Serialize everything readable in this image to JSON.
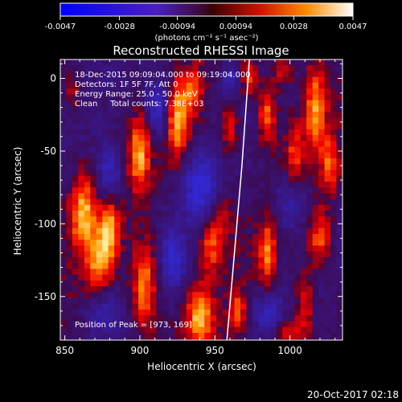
{
  "chart_data": {
    "type": "heatmap",
    "title": "Reconstructed RHESSI Image",
    "xlabel": "Heliocentric X (arcsec)",
    "ylabel": "Heliocentric Y (arcsec)",
    "xlim": [
      847,
      1035
    ],
    "ylim": [
      -180,
      13
    ],
    "xticks": [
      850,
      900,
      950,
      1000
    ],
    "yticks": [
      0,
      -50,
      -100,
      -150
    ],
    "colorbar": {
      "range": [
        -0.0047,
        0.0047
      ],
      "ticks": [
        "-0.0047",
        "-0.0028",
        "-0.00094",
        "0.00094",
        "0.0028",
        "0.0047"
      ],
      "units_label": "(photons cm⁻² s⁻¹ asec⁻²)"
    },
    "annotations": [
      "18-Dec-2015 09:09:04.000 to 09:19:04.000",
      "Detectors: 1F 5F 7F, Att 0",
      "Energy Range: 25.0 - 50.0 keV",
      "Clean     Total counts: 7.38E+03"
    ],
    "peak_label": "Position of Peak = [973, 169]",
    "footer_date": "20-Oct-2017 02:18",
    "limb_curve": [
      [
        973,
        13
      ],
      [
        968,
        -60
      ],
      [
        963,
        -120
      ],
      [
        958,
        -180
      ]
    ],
    "blobs": [
      {
        "x": 925,
        "y": -30,
        "sx": 5,
        "sy": 18,
        "a": 1.0
      },
      {
        "x": 900,
        "y": -52,
        "sx": 5,
        "sy": 18,
        "a": 0.9
      },
      {
        "x": 862,
        "y": -92,
        "sx": 6,
        "sy": 18,
        "a": 1.0
      },
      {
        "x": 880,
        "y": -105,
        "sx": 5,
        "sy": 16,
        "a": 0.9
      },
      {
        "x": 872,
        "y": -128,
        "sx": 6,
        "sy": 16,
        "a": 0.8
      },
      {
        "x": 903,
        "y": -143,
        "sx": 6,
        "sy": 22,
        "a": 0.95
      },
      {
        "x": 940,
        "y": -165,
        "sx": 6,
        "sy": 14,
        "a": 1.0
      },
      {
        "x": 947,
        "y": -115,
        "sx": 5,
        "sy": 14,
        "a": 0.7
      },
      {
        "x": 955,
        "y": -95,
        "sx": 5,
        "sy": 12,
        "a": 0.5
      },
      {
        "x": 935,
        "y": -10,
        "sx": 5,
        "sy": 12,
        "a": 0.6
      },
      {
        "x": 960,
        "y": -35,
        "sx": 4,
        "sy": 12,
        "a": 0.6
      },
      {
        "x": 985,
        "y": -25,
        "sx": 4,
        "sy": 14,
        "a": 0.9
      },
      {
        "x": 1017,
        "y": -20,
        "sx": 5,
        "sy": 22,
        "a": 0.9
      },
      {
        "x": 1027,
        "y": -60,
        "sx": 4,
        "sy": 14,
        "a": 0.7
      },
      {
        "x": 1003,
        "y": -52,
        "sx": 4,
        "sy": 16,
        "a": 0.6
      },
      {
        "x": 985,
        "y": -120,
        "sx": 4,
        "sy": 16,
        "a": 0.8
      },
      {
        "x": 1020,
        "y": -110,
        "sx": 5,
        "sy": 14,
        "a": 0.8
      },
      {
        "x": 1010,
        "y": -155,
        "sx": 4,
        "sy": 16,
        "a": 0.6
      },
      {
        "x": 1000,
        "y": -175,
        "sx": 6,
        "sy": 8,
        "a": 0.6
      },
      {
        "x": 973,
        "y": 0,
        "sx": 4,
        "sy": 10,
        "a": 0.7
      },
      {
        "x": 995,
        "y": 5,
        "sx": 5,
        "sy": 8,
        "a": 0.6
      },
      {
        "x": 855,
        "y": -10,
        "sx": 4,
        "sy": 8,
        "a": 0.4
      },
      {
        "x": 965,
        "y": -160,
        "sx": 4,
        "sy": 10,
        "a": 0.7
      }
    ],
    "troughs": [
      {
        "x": 912,
        "y": -20,
        "sx": 6,
        "sy": 14,
        "a": 0.8
      },
      {
        "x": 880,
        "y": -65,
        "sx": 6,
        "sy": 14,
        "a": 0.7
      },
      {
        "x": 940,
        "y": -75,
        "sx": 8,
        "sy": 16,
        "a": 0.8
      },
      {
        "x": 922,
        "y": -125,
        "sx": 6,
        "sy": 14,
        "a": 0.7
      },
      {
        "x": 1000,
        "y": -85,
        "sx": 8,
        "sy": 14,
        "a": 0.6
      },
      {
        "x": 985,
        "y": -160,
        "sx": 7,
        "sy": 10,
        "a": 0.6
      },
      {
        "x": 960,
        "y": 0,
        "sx": 5,
        "sy": 8,
        "a": 0.6
      },
      {
        "x": 875,
        "y": -160,
        "sx": 8,
        "sy": 10,
        "a": 0.5
      }
    ]
  }
}
